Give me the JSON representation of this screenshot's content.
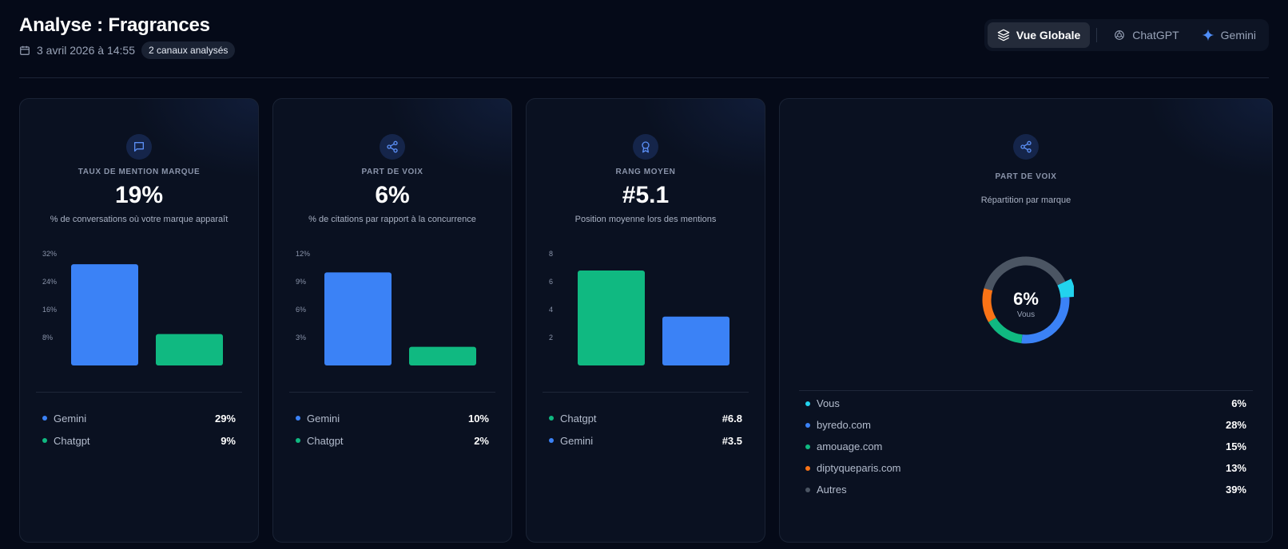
{
  "header": {
    "title": "Analyse : Fragrances",
    "date": "3 avril 2026 à 14:55",
    "badge": "2 canaux analysés"
  },
  "tabs": [
    {
      "label": "Vue Globale",
      "icon": "layers-icon",
      "active": true
    },
    {
      "label": "ChatGPT",
      "icon": "openai-icon",
      "active": false
    },
    {
      "label": "Gemini",
      "icon": "sparkle-icon",
      "active": false
    }
  ],
  "colors": {
    "blue": "#3b82f6",
    "green": "#10b981",
    "cyan": "#22d3ee",
    "orange": "#f97316",
    "gray": "#4b5563",
    "background": "#050a18"
  },
  "cards": [
    {
      "icon": "message-icon",
      "label": "TAUX DE MENTION MARQUE",
      "value": "19%",
      "description": "% de conversations où votre marque apparaît",
      "legend": [
        {
          "name": "Gemini",
          "value": "29%",
          "color": "#3b82f6"
        },
        {
          "name": "Chatgpt",
          "value": "9%",
          "color": "#10b981"
        }
      ]
    },
    {
      "icon": "share-icon",
      "label": "PART DE VOIX",
      "value": "6%",
      "description": "% de citations par rapport à la concurrence",
      "legend": [
        {
          "name": "Gemini",
          "value": "10%",
          "color": "#3b82f6"
        },
        {
          "name": "Chatgpt",
          "value": "2%",
          "color": "#10b981"
        }
      ]
    },
    {
      "icon": "award-icon",
      "label": "RANG MOYEN",
      "value": "#5.1",
      "description": "Position moyenne lors des mentions",
      "legend": [
        {
          "name": "Chatgpt",
          "value": "#6.8",
          "color": "#10b981"
        },
        {
          "name": "Gemini",
          "value": "#3.5",
          "color": "#3b82f6"
        }
      ]
    }
  ],
  "donut_card": {
    "icon": "share-icon",
    "label": "PART DE VOIX",
    "subtitle": "Répartition par marque",
    "center_value": "6%",
    "center_label": "Vous",
    "legend": [
      {
        "name": "Vous",
        "value": "6%",
        "color": "#22d3ee"
      },
      {
        "name": "byredo.com",
        "value": "28%",
        "color": "#3b82f6"
      },
      {
        "name": "amouage.com",
        "value": "15%",
        "color": "#10b981"
      },
      {
        "name": "diptyqueparis.com",
        "value": "13%",
        "color": "#f97316"
      },
      {
        "name": "Autres",
        "value": "39%",
        "color": "#4b5563"
      }
    ]
  },
  "chart_data": [
    {
      "type": "bar",
      "categories": [
        "Gemini",
        "Chatgpt"
      ],
      "values": [
        29,
        9
      ],
      "colors": [
        "#3b82f6",
        "#10b981"
      ],
      "ylim": [
        0,
        32
      ],
      "yticks": [
        8,
        16,
        24,
        32
      ],
      "tick_labels": [
        "8%",
        "16%",
        "24%",
        "32%"
      ],
      "grid": false
    },
    {
      "type": "bar",
      "categories": [
        "Gemini",
        "Chatgpt"
      ],
      "values": [
        10,
        2
      ],
      "colors": [
        "#3b82f6",
        "#10b981"
      ],
      "ylim": [
        0,
        12
      ],
      "yticks": [
        3,
        6,
        9,
        12
      ],
      "tick_labels": [
        "3%",
        "6%",
        "9%",
        "12%"
      ],
      "grid": false
    },
    {
      "type": "bar",
      "categories": [
        "Chatgpt",
        "Gemini"
      ],
      "values": [
        6.8,
        3.5
      ],
      "colors": [
        "#10b981",
        "#3b82f6"
      ],
      "ylim": [
        0,
        8
      ],
      "yticks": [
        2,
        4,
        6,
        8
      ],
      "tick_labels": [
        "2",
        "4",
        "6",
        "8"
      ],
      "grid": false
    },
    {
      "type": "pie",
      "categories": [
        "Vous",
        "byredo.com",
        "amouage.com",
        "diptyqueparis.com",
        "Autres"
      ],
      "values": [
        6,
        28,
        15,
        13,
        39
      ],
      "colors": [
        "#22d3ee",
        "#3b82f6",
        "#10b981",
        "#f97316",
        "#4b5563"
      ],
      "highlight": "Vous"
    }
  ]
}
